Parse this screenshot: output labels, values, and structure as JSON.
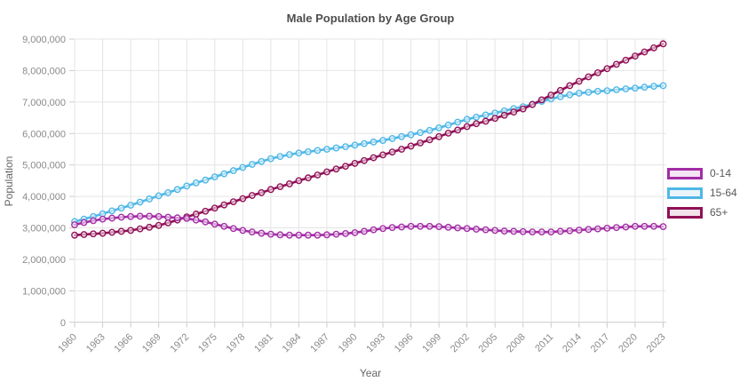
{
  "chart_data": {
    "type": "line",
    "title": "Male Population by Age Group",
    "xlabel": "Year",
    "ylabel": "Population",
    "grid": true,
    "legend_position": "right",
    "ylim": [
      0,
      9000000
    ],
    "y_tick_step": 1000000,
    "y_ticks": [
      0,
      1000000,
      2000000,
      3000000,
      4000000,
      5000000,
      6000000,
      7000000,
      8000000,
      9000000
    ],
    "x_tick_labels": [
      1960,
      1963,
      1966,
      1969,
      1972,
      1975,
      1978,
      1981,
      1984,
      1987,
      1990,
      1993,
      1996,
      1999,
      2002,
      2005,
      2008,
      2011,
      2014,
      2017,
      2020,
      2023
    ],
    "x": [
      1960,
      1961,
      1962,
      1963,
      1964,
      1965,
      1966,
      1967,
      1968,
      1969,
      1970,
      1971,
      1972,
      1973,
      1974,
      1975,
      1976,
      1977,
      1978,
      1979,
      1980,
      1981,
      1982,
      1983,
      1984,
      1985,
      1986,
      1987,
      1988,
      1989,
      1990,
      1991,
      1992,
      1993,
      1994,
      1995,
      1996,
      1997,
      1998,
      1999,
      2000,
      2001,
      2002,
      2003,
      2004,
      2005,
      2006,
      2007,
      2008,
      2009,
      2010,
      2011,
      2012,
      2013,
      2014,
      2015,
      2016,
      2017,
      2018,
      2019,
      2020,
      2021,
      2022,
      2023
    ],
    "series": [
      {
        "name": "0-14",
        "color": "#A32CA5",
        "values": [
          3100000,
          3170000,
          3230000,
          3280000,
          3310000,
          3340000,
          3360000,
          3370000,
          3370000,
          3360000,
          3340000,
          3320000,
          3300000,
          3250000,
          3190000,
          3120000,
          3050000,
          2980000,
          2920000,
          2870000,
          2830000,
          2800000,
          2780000,
          2770000,
          2770000,
          2770000,
          2770000,
          2780000,
          2800000,
          2820000,
          2850000,
          2890000,
          2940000,
          2980000,
          3010000,
          3030000,
          3050000,
          3050000,
          3050000,
          3040000,
          3020000,
          3000000,
          2980000,
          2960000,
          2940000,
          2920000,
          2900000,
          2890000,
          2880000,
          2870000,
          2870000,
          2870000,
          2890000,
          2910000,
          2930000,
          2950000,
          2970000,
          2990000,
          3010000,
          3030000,
          3050000,
          3050000,
          3050000,
          3040000
        ]
      },
      {
        "name": "15-64",
        "color": "#4FB7E6",
        "values": [
          3200000,
          3280000,
          3360000,
          3450000,
          3540000,
          3630000,
          3720000,
          3820000,
          3920000,
          4020000,
          4120000,
          4220000,
          4330000,
          4430000,
          4520000,
          4620000,
          4720000,
          4820000,
          4920000,
          5020000,
          5110000,
          5200000,
          5270000,
          5330000,
          5380000,
          5420000,
          5460000,
          5500000,
          5540000,
          5580000,
          5630000,
          5680000,
          5730000,
          5780000,
          5840000,
          5900000,
          5960000,
          6030000,
          6100000,
          6180000,
          6270000,
          6360000,
          6450000,
          6520000,
          6590000,
          6650000,
          6720000,
          6790000,
          6850000,
          6930000,
          7020000,
          7100000,
          7170000,
          7230000,
          7280000,
          7310000,
          7340000,
          7360000,
          7390000,
          7420000,
          7440000,
          7470000,
          7500000,
          7520000
        ]
      },
      {
        "name": "65+",
        "color": "#901056",
        "values": [
          2770000,
          2790000,
          2810000,
          2830000,
          2860000,
          2890000,
          2920000,
          2970000,
          3020000,
          3080000,
          3160000,
          3250000,
          3350000,
          3440000,
          3530000,
          3630000,
          3730000,
          3830000,
          3930000,
          4030000,
          4120000,
          4220000,
          4310000,
          4400000,
          4500000,
          4590000,
          4680000,
          4780000,
          4870000,
          4960000,
          5050000,
          5140000,
          5230000,
          5320000,
          5410000,
          5500000,
          5600000,
          5700000,
          5800000,
          5900000,
          6010000,
          6110000,
          6220000,
          6310000,
          6390000,
          6480000,
          6580000,
          6680000,
          6780000,
          6920000,
          7070000,
          7220000,
          7370000,
          7520000,
          7660000,
          7800000,
          7930000,
          8060000,
          8200000,
          8330000,
          8460000,
          8590000,
          8720000,
          8850000
        ]
      }
    ],
    "colors": {
      "gridline": "#E4E4E4",
      "axis_line": "#CCCCCC",
      "tick_text": "#8A8A8A"
    }
  }
}
